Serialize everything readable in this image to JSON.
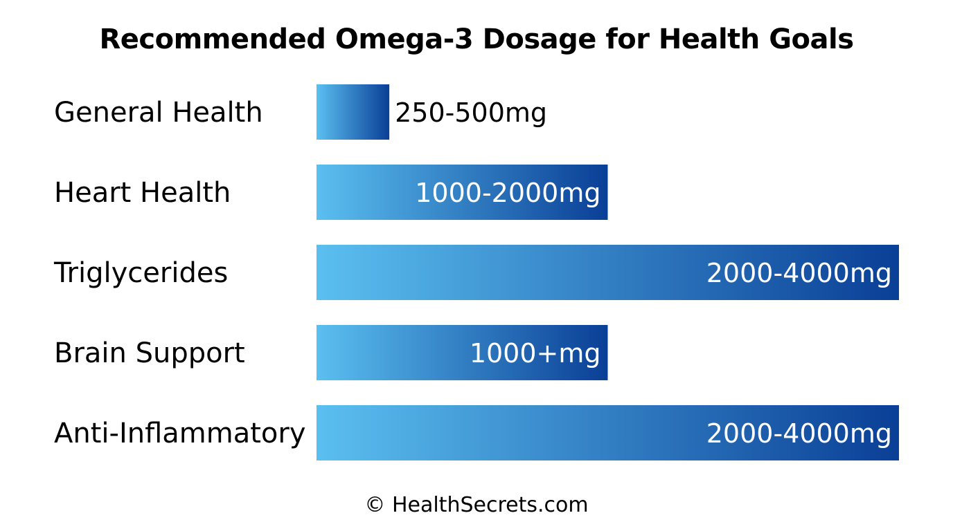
{
  "title": "Recommended Omega-3 Dosage for Health Goals",
  "footer": "© HealthSecrets.com",
  "colors": {
    "bar_light": "#5bbff0",
    "bar_dark": "#0a3f96",
    "label_inside": "#ffffff",
    "label_outside": "#000000"
  },
  "chart_data": {
    "type": "bar",
    "orientation": "horizontal",
    "categories": [
      "General Health",
      "Heart Health",
      "Triglycerides",
      "Brain Support",
      "Anti-Inflammatory"
    ],
    "values": [
      500,
      2000,
      4000,
      2000,
      4000
    ],
    "value_labels": [
      "250-500mg",
      "1000-2000mg",
      "2000-4000mg",
      "1000+mg",
      "2000-4000mg"
    ],
    "xlim": [
      0,
      4000
    ],
    "grid": false,
    "legend": "none",
    "xlabel": "",
    "ylabel": ""
  }
}
